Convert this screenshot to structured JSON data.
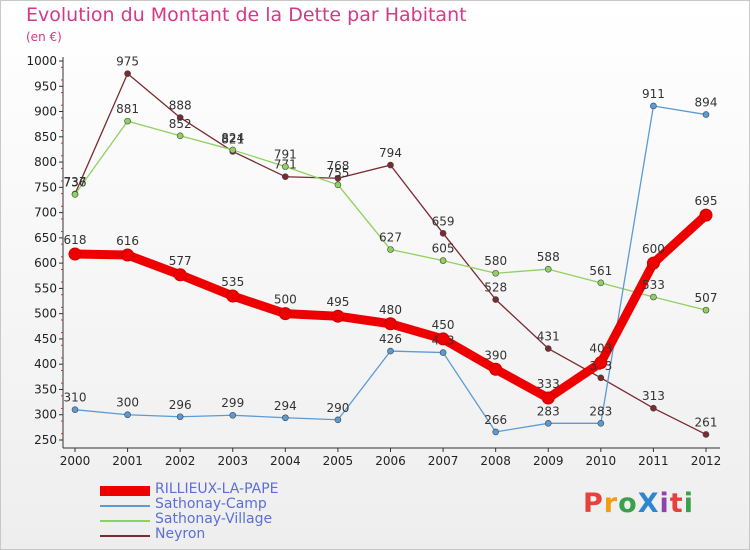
{
  "title": "Evolution du Montant de la Dette par Habitant",
  "unit": "(en €)",
  "logo": {
    "text": "ProXiti",
    "colors": [
      "#e8413c",
      "#f39c12",
      "#3aa04a",
      "#2e86d1",
      "#8e44ad",
      "#e8413c",
      "#3aa04a"
    ]
  },
  "chart_data": {
    "type": "line",
    "title": "Evolution du Montant de la Dette par Habitant",
    "ylabel": "(en €)",
    "x": [
      "2000",
      "2001",
      "2002",
      "2003",
      "2004",
      "2005",
      "2006",
      "2007",
      "2008",
      "2009",
      "2010",
      "2011",
      "2012"
    ],
    "yticks": [
      "250",
      "300",
      "350",
      "400",
      "450",
      "500",
      "550",
      "600",
      "650",
      "700",
      "750",
      "800",
      "850",
      "900",
      "950",
      "1000"
    ],
    "ylim": [
      250,
      1000
    ],
    "grid": false,
    "legend_position": "bottom-left",
    "series": [
      {
        "name": "RILLIEUX-LA-PAPE",
        "color": "#ee0000",
        "values": [
          618,
          616,
          577,
          535,
          500,
          495,
          480,
          450,
          390,
          333,
          403,
          600,
          695
        ]
      },
      {
        "name": "Sathonay-Camp",
        "color": "#5b9bd5",
        "values": [
          310,
          300,
          296,
          299,
          294,
          290,
          426,
          423,
          266,
          283,
          283,
          911,
          894
        ]
      },
      {
        "name": "Sathonay-Village",
        "color": "#90d060",
        "values": [
          736,
          881,
          852,
          824,
          791,
          755,
          627,
          605,
          580,
          588,
          561,
          533,
          507
        ]
      },
      {
        "name": "Neyron",
        "color": "#7a2a30",
        "values": [
          737,
          975,
          888,
          821,
          771,
          768,
          794,
          659,
          528,
          431,
          373,
          313,
          261
        ]
      }
    ]
  }
}
